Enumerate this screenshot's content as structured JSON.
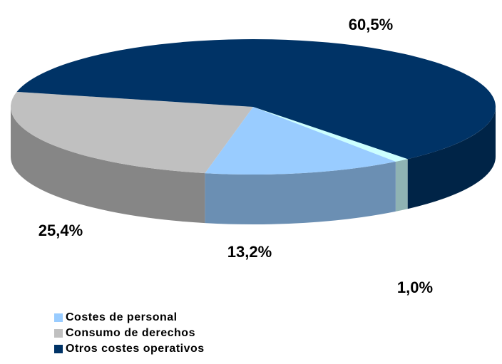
{
  "chart_data": {
    "type": "pie",
    "categories": [
      null,
      "Costes de personal",
      "Consumo de derechos",
      "Otros costes operativos"
    ],
    "values": [
      1.0,
      13.2,
      25.4,
      60.5
    ],
    "value_labels": [
      "1,0%",
      "13,2%",
      "25,4%",
      "60,5%"
    ],
    "colors": [
      "#ccffff",
      "#99ccff",
      "#c0c0c0",
      "#003366"
    ],
    "legend": "bottom-left"
  }
}
